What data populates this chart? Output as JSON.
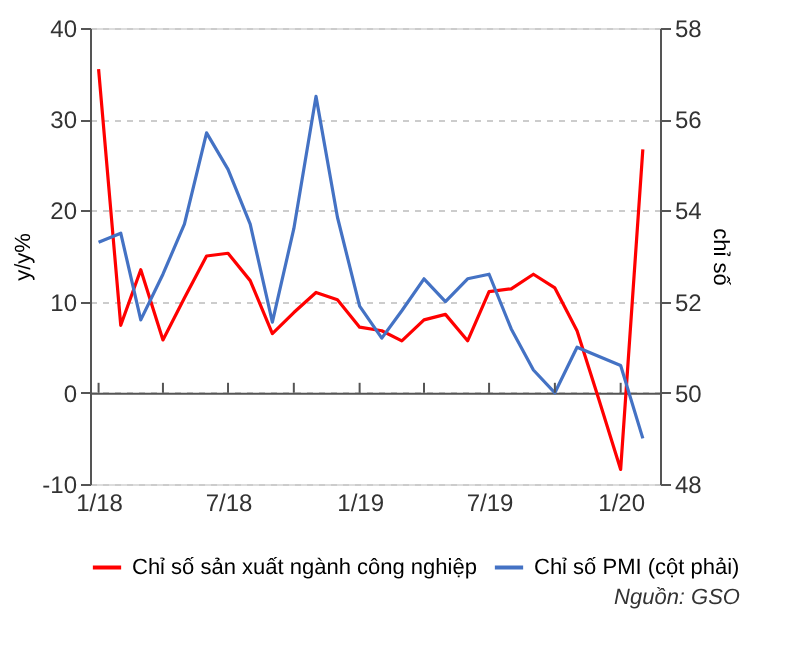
{
  "chart_data": {
    "type": "line",
    "x": [
      "2018-01",
      "2018-02",
      "2018-03",
      "2018-04",
      "2018-05",
      "2018-06",
      "2018-07",
      "2018-08",
      "2018-09",
      "2018-10",
      "2018-11",
      "2018-12",
      "2019-01",
      "2019-02",
      "2019-03",
      "2019-04",
      "2019-05",
      "2019-06",
      "2019-07",
      "2019-08",
      "2019-09",
      "2019-10",
      "2019-11",
      "2019-12",
      "2020-01",
      "2020-02"
    ],
    "xlim": [
      "2017-12-20",
      "2020-02-25"
    ],
    "xticks": [
      {
        "value": "2018-01",
        "label": "1/18"
      },
      {
        "value": "2018-04",
        "label": null
      },
      {
        "value": "2018-07",
        "label": "7/18"
      },
      {
        "value": "2018-10",
        "label": null
      },
      {
        "value": "2019-01",
        "label": "1/19"
      },
      {
        "value": "2019-04",
        "label": null
      },
      {
        "value": "2019-07",
        "label": "7/19"
      },
      {
        "value": "2019-10",
        "label": null
      },
      {
        "value": "2020-01",
        "label": "1/20"
      }
    ],
    "ylabel": "y/y%",
    "y2label": "chỉ số",
    "ylim": [
      -10,
      40
    ],
    "yticks": [
      -10,
      0,
      10,
      20,
      30,
      40
    ],
    "y2lim": [
      48,
      58
    ],
    "y2ticks": [
      48,
      50,
      52,
      54,
      56,
      58
    ],
    "series": [
      {
        "name": "Chỉ số sản xuất ngành công nghiệp",
        "color": "#ff0000",
        "values": [
          35.5,
          7.4,
          13.5,
          5.8,
          10.4,
          15.0,
          15.3,
          12.3,
          6.5,
          8.8,
          11.0,
          10.2,
          7.2,
          6.8,
          5.7,
          8.0,
          8.6,
          5.7,
          11.1,
          11.4,
          13.0,
          11.5,
          6.8,
          -0.6,
          -8.4,
          26.7
        ]
      },
      {
        "name": "Chỉ số PMI (cột phải)",
        "color": "#4472c4",
        "axis": "y2",
        "values": [
          53.3,
          53.5,
          51.6,
          52.6,
          53.7,
          55.7,
          54.9,
          53.7,
          51.55,
          53.6,
          56.5,
          53.85,
          51.9,
          51.2,
          51.8,
          52.5,
          52.0,
          52.5,
          52.6,
          51.4,
          50.5,
          50.0,
          51.0,
          50.8,
          50.6,
          49.0
        ]
      }
    ],
    "grid": "y",
    "legend": "bottom",
    "line_style": "solid",
    "marker": "none",
    "annotations": [
      "Nguồn: GSO"
    ]
  }
}
